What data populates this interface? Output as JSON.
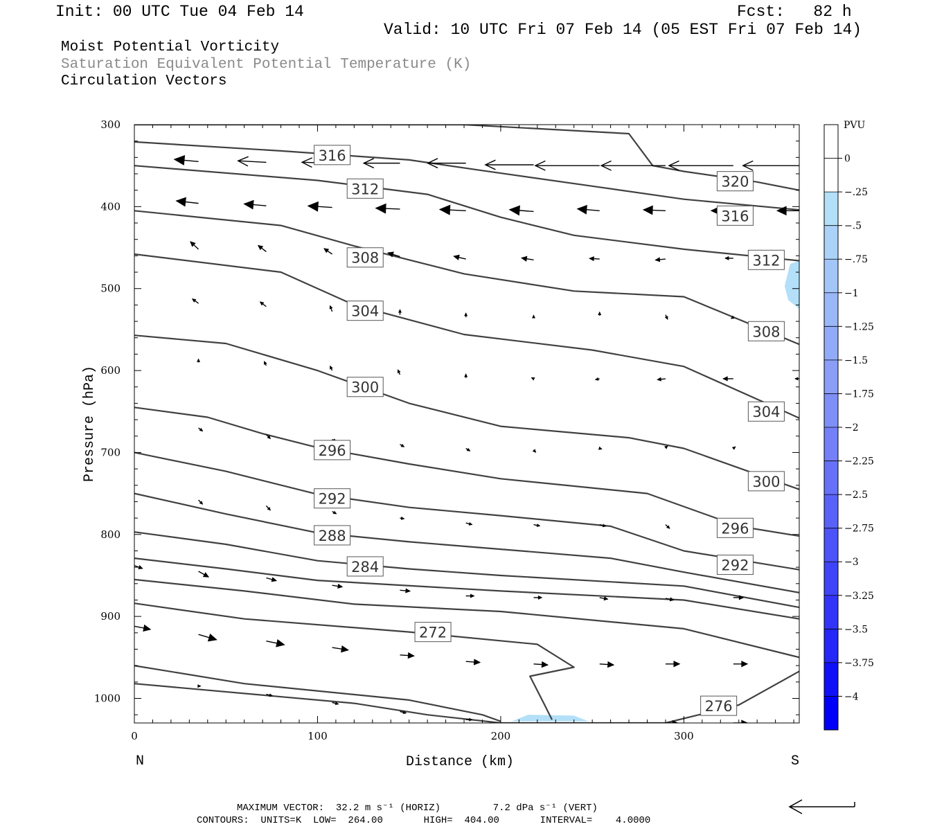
{
  "header": {
    "init": "Init: 00 UTC Tue 04 Feb 14",
    "fcst": "Fcst:   82 h",
    "valid": "Valid: 10 UTC Fri 07 Feb 14 (05 EST Fri 07 Feb 14)",
    "line1": "Moist Potential Vorticity",
    "line2": "Saturation Equivalent Potential Temperature (K)",
    "line3": "Circulation Vectors"
  },
  "footer": {
    "max_vector": "MAXIMUM VECTOR:  32.2 m s⁻¹ (HORIZ)         7.2 dPa s⁻¹ (VERT)",
    "contours": "CONTOURS:  UNITS=K  LOW=  264.00       HIGH=  404.00       INTERVAL=    4.0000"
  },
  "colors": {
    "contour": "#404040",
    "shade_light": "#b3e0f8",
    "vector": "#000000"
  },
  "chart_data": {
    "type": "contour-cross-section",
    "xlabel": "Distance (km)",
    "ylabel": "Pressure (hPa)",
    "xlim": [
      0,
      363
    ],
    "ylim": [
      1030,
      300
    ],
    "x_ticks": [
      0,
      100,
      200,
      300
    ],
    "y_ticks": [
      300,
      400,
      500,
      600,
      700,
      800,
      900,
      1000
    ],
    "left_end_label": "N",
    "right_end_label": "S",
    "colorbar": {
      "title": "PVU",
      "labels": [
        "0",
        "-.25",
        "-.5",
        "-.75",
        "-1",
        "-1.25",
        "-1.5",
        "-1.75",
        "-2",
        "-2.25",
        "-2.5",
        "-2.75",
        "-3",
        "-3.25",
        "-3.5",
        "-3.75",
        "-4"
      ],
      "colors": [
        "#ffffff",
        "#ffffff",
        "#b3e0f8",
        "#abd3f8",
        "#a3c6f8",
        "#9ab8f8",
        "#92abf8",
        "#8a9ef8",
        "#7f8ff8",
        "#7380f8",
        "#6671f8",
        "#5962f8",
        "#4c53f8",
        "#3f44f8",
        "#3235f8",
        "#2526f8",
        "#1010f8",
        "#0000f8"
      ]
    },
    "contours": [
      {
        "value": 320,
        "label": "320",
        "label_at": [
          328,
          369
        ],
        "points": [
          [
            0,
            300
          ],
          [
            180,
            300
          ],
          [
            270,
            311
          ],
          [
            283,
            350
          ],
          [
            300,
            357
          ],
          [
            340,
            370
          ],
          [
            363,
            380
          ]
        ]
      },
      {
        "value": 316,
        "label": "316",
        "label_at": [
          108,
          337
        ],
        "label2_at": [
          328,
          411
        ],
        "points": [
          [
            0,
            321
          ],
          [
            80,
            332
          ],
          [
            150,
            343
          ],
          [
            190,
            356
          ],
          [
            250,
            375
          ],
          [
            300,
            391
          ],
          [
            363,
            404
          ]
        ]
      },
      {
        "value": 312,
        "label": "312",
        "label_at": [
          126,
          378
        ],
        "label2_at": [
          345,
          465
        ],
        "points": [
          [
            0,
            350
          ],
          [
            100,
            368
          ],
          [
            160,
            385
          ],
          [
            200,
            413
          ],
          [
            240,
            435
          ],
          [
            300,
            452
          ],
          [
            363,
            466
          ]
        ]
      },
      {
        "value": 308,
        "label": "308",
        "label_at": [
          126,
          462
        ],
        "label2_at": [
          345,
          552
        ],
        "points": [
          [
            0,
            405
          ],
          [
            80,
            423
          ],
          [
            120,
            448
          ],
          [
            180,
            482
          ],
          [
            240,
            503
          ],
          [
            300,
            510
          ],
          [
            363,
            568
          ]
        ]
      },
      {
        "value": 304,
        "label": "304",
        "label_at": [
          126,
          527
        ],
        "label2_at": [
          345,
          650
        ],
        "points": [
          [
            0,
            458
          ],
          [
            80,
            480
          ],
          [
            120,
            520
          ],
          [
            180,
            556
          ],
          [
            250,
            575
          ],
          [
            300,
            595
          ],
          [
            363,
            658
          ]
        ]
      },
      {
        "value": 300,
        "label": "300",
        "label_at": [
          126,
          620
        ],
        "label2_at": [
          345,
          735
        ],
        "points": [
          [
            0,
            557
          ],
          [
            50,
            567
          ],
          [
            100,
            600
          ],
          [
            150,
            640
          ],
          [
            200,
            668
          ],
          [
            270,
            682
          ],
          [
            300,
            695
          ],
          [
            363,
            745
          ]
        ]
      },
      {
        "value": 296,
        "label": "296",
        "label_at": [
          108,
          697
        ],
        "label2_at": [
          328,
          792
        ],
        "points": [
          [
            0,
            645
          ],
          [
            40,
            657
          ],
          [
            70,
            677
          ],
          [
            100,
            694
          ],
          [
            150,
            714
          ],
          [
            200,
            732
          ],
          [
            280,
            750
          ],
          [
            330,
            790
          ],
          [
            363,
            802
          ]
        ]
      },
      {
        "value": 292,
        "label": "292",
        "label_at": [
          108,
          756
        ],
        "label2_at": [
          328,
          837
        ],
        "points": [
          [
            0,
            700
          ],
          [
            50,
            723
          ],
          [
            100,
            751
          ],
          [
            150,
            767
          ],
          [
            200,
            777
          ],
          [
            260,
            790
          ],
          [
            300,
            820
          ],
          [
            363,
            843
          ]
        ]
      },
      {
        "value": 288,
        "label": "288",
        "label_at": [
          108,
          801
        ],
        "points": [
          [
            0,
            750
          ],
          [
            50,
            775
          ],
          [
            100,
            798
          ],
          [
            150,
            809
          ],
          [
            200,
            818
          ],
          [
            260,
            829
          ],
          [
            300,
            846
          ],
          [
            363,
            871
          ]
        ]
      },
      {
        "value": 284,
        "label": "284",
        "label_at": [
          126,
          839
        ],
        "points": [
          [
            0,
            797
          ],
          [
            50,
            812
          ],
          [
            100,
            832
          ],
          [
            150,
            842
          ],
          [
            200,
            850
          ],
          [
            300,
            863
          ],
          [
            363,
            889
          ]
        ]
      },
      {
        "value": 280,
        "label": "",
        "points": [
          [
            0,
            829
          ],
          [
            50,
            842
          ],
          [
            100,
            856
          ],
          [
            200,
            869
          ],
          [
            300,
            880
          ],
          [
            363,
            903
          ]
        ]
      },
      {
        "value": 276,
        "label": "276",
        "label_at": [
          319,
          1009
        ],
        "points": [
          [
            0,
            855
          ],
          [
            60,
            869
          ],
          [
            120,
            885
          ],
          [
            200,
            894
          ],
          [
            300,
            915
          ],
          [
            363,
            950
          ]
        ]
      },
      {
        "value": 272,
        "label": "272",
        "label_at": [
          163,
          919
        ],
        "points": [
          [
            0,
            884
          ],
          [
            60,
            903
          ],
          [
            150,
            919
          ],
          [
            220,
            934
          ],
          [
            240,
            962
          ],
          [
            216,
            973
          ],
          [
            224,
            1008
          ],
          [
            228,
            1026
          ]
        ]
      },
      {
        "value": 268,
        "label": "",
        "points": [
          [
            0,
            960
          ],
          [
            60,
            982
          ],
          [
            150,
            1002
          ],
          [
            190,
            1020
          ],
          [
            200,
            1028
          ]
        ]
      },
      {
        "value": 264,
        "label": "",
        "points": [
          [
            0,
            982
          ],
          [
            120,
            1006
          ],
          [
            160,
            1020
          ],
          [
            200,
            1030
          ],
          [
            290,
            1030
          ],
          [
            330,
            1008
          ],
          [
            363,
            967
          ]
        ]
      }
    ],
    "shaded_regions": [
      {
        "level": "-.25",
        "points": [
          [
            206,
            1028
          ],
          [
            215,
            1020
          ],
          [
            240,
            1021
          ],
          [
            248,
            1028
          ]
        ]
      },
      {
        "level": "-.25",
        "points": [
          [
            363,
            466
          ],
          [
            358,
            470
          ],
          [
            355,
            497
          ],
          [
            357,
            514
          ],
          [
            363,
            525
          ]
        ]
      }
    ],
    "vectors_description": "circulation vectors; easterly flow (leftward) aloft above 400 hPa, weak flow mid-levels, westerly (rightward) flow below 800 hPa",
    "vectors": [
      {
        "x": 35,
        "p": 345,
        "u": -12,
        "w": 0.7
      },
      {
        "x": 72,
        "p": 346,
        "u": -14,
        "w": 0.5
      },
      {
        "x": 108,
        "p": 347,
        "u": -15,
        "w": 0.3
      },
      {
        "x": 145,
        "p": 347,
        "u": -18,
        "w": 0
      },
      {
        "x": 181,
        "p": 347,
        "u": -19,
        "w": 0
      },
      {
        "x": 218,
        "p": 349,
        "u": -24,
        "w": 0
      },
      {
        "x": 254,
        "p": 350,
        "u": -32,
        "w": 0
      },
      {
        "x": 290,
        "p": 350,
        "u": -32,
        "w": 0
      },
      {
        "x": 327,
        "p": 350,
        "u": -32,
        "w": 0
      },
      {
        "x": 363,
        "p": 350,
        "u": -28,
        "w": 0
      },
      {
        "x": 35,
        "p": 396,
        "u": -11,
        "w": 0.8
      },
      {
        "x": 72,
        "p": 399,
        "u": -11,
        "w": 0.6
      },
      {
        "x": 108,
        "p": 401,
        "u": -12,
        "w": 0.5
      },
      {
        "x": 145,
        "p": 403,
        "u": -12,
        "w": 0.3
      },
      {
        "x": 181,
        "p": 405,
        "u": -13,
        "w": 0.4
      },
      {
        "x": 218,
        "p": 406,
        "u": -12,
        "w": 0.6
      },
      {
        "x": 254,
        "p": 405,
        "u": -11,
        "w": 0.6
      },
      {
        "x": 290,
        "p": 405,
        "u": -11,
        "w": 0.3
      },
      {
        "x": 327,
        "p": 405,
        "u": -11,
        "w": 0
      },
      {
        "x": 363,
        "p": 405,
        "u": -11,
        "w": 0
      },
      {
        "x": 35,
        "p": 452,
        "u": -4,
        "w": 2.4
      },
      {
        "x": 72,
        "p": 455,
        "u": -4,
        "w": 2.0
      },
      {
        "x": 108,
        "p": 458,
        "u": -4,
        "w": 1.8
      },
      {
        "x": 145,
        "p": 461,
        "u": -6,
        "w": 1.2
      },
      {
        "x": 181,
        "p": 464,
        "u": -6,
        "w": 0.9
      },
      {
        "x": 218,
        "p": 465,
        "u": -6,
        "w": 0.6
      },
      {
        "x": 254,
        "p": 464,
        "u": -5,
        "w": 0.2
      },
      {
        "x": 290,
        "p": 464,
        "u": -5,
        "w": -0.3
      },
      {
        "x": 327,
        "p": 463,
        "u": -4,
        "w": 0
      },
      {
        "x": 35,
        "p": 518,
        "u": -3,
        "w": 1.4
      },
      {
        "x": 72,
        "p": 522,
        "u": -3,
        "w": 1.5
      },
      {
        "x": 108,
        "p": 528,
        "u": -1,
        "w": 1.8
      },
      {
        "x": 145,
        "p": 532,
        "u": 0,
        "w": 1.6
      },
      {
        "x": 181,
        "p": 535,
        "u": 0,
        "w": 1.3
      },
      {
        "x": 218,
        "p": 535,
        "u": 0,
        "w": 0.6
      },
      {
        "x": 254,
        "p": 533,
        "u": 0,
        "w": 1.1
      },
      {
        "x": 290,
        "p": 532,
        "u": 1,
        "w": -1.4
      },
      {
        "x": 327,
        "p": 535,
        "u": -1,
        "w": -0.4
      },
      {
        "x": 35,
        "p": 590,
        "u": 0,
        "w": 1.0
      },
      {
        "x": 72,
        "p": 594,
        "u": -1,
        "w": 1.3
      },
      {
        "x": 108,
        "p": 600,
        "u": -1,
        "w": 1.4
      },
      {
        "x": 145,
        "p": 605,
        "u": -1,
        "w": 1.5
      },
      {
        "x": 181,
        "p": 609,
        "u": 0,
        "w": 1.2
      },
      {
        "x": 218,
        "p": 610,
        "u": -1,
        "w": 0.3
      },
      {
        "x": 254,
        "p": 610,
        "u": -2,
        "w": -0.3
      },
      {
        "x": 290,
        "p": 610,
        "u": -4,
        "w": -0.3
      },
      {
        "x": 327,
        "p": 610,
        "u": -5,
        "w": 0
      },
      {
        "x": 363,
        "p": 610,
        "u": -2,
        "w": 0
      },
      {
        "x": 35,
        "p": 670,
        "u": 2,
        "w": -1.0
      },
      {
        "x": 72,
        "p": 678,
        "u": 2,
        "w": -1.3
      },
      {
        "x": 108,
        "p": 684,
        "u": 2,
        "w": -0.6
      },
      {
        "x": 145,
        "p": 690,
        "u": 2,
        "w": -0.8
      },
      {
        "x": 181,
        "p": 695,
        "u": 2,
        "w": -0.8
      },
      {
        "x": 218,
        "p": 697,
        "u": 1,
        "w": -0.7
      },
      {
        "x": 254,
        "p": 695,
        "u": 1,
        "w": -0.2
      },
      {
        "x": 290,
        "p": 694,
        "u": 1,
        "w": 0.5
      },
      {
        "x": 327,
        "p": 695,
        "u": 1,
        "w": 0.5
      },
      {
        "x": 35,
        "p": 758,
        "u": 2,
        "w": -1.3
      },
      {
        "x": 72,
        "p": 765,
        "u": 2,
        "w": -1.4
      },
      {
        "x": 108,
        "p": 772,
        "u": 2,
        "w": -0.7
      },
      {
        "x": 145,
        "p": 780,
        "u": 2,
        "w": -0.2
      },
      {
        "x": 181,
        "p": 786,
        "u": 3,
        "w": -0.5
      },
      {
        "x": 218,
        "p": 788,
        "u": 3,
        "w": -0.4
      },
      {
        "x": 254,
        "p": 788,
        "u": 3,
        "w": -0.5
      },
      {
        "x": 290,
        "p": 788,
        "u": 2,
        "w": -1.2
      },
      {
        "x": 327,
        "p": 788,
        "u": 3,
        "w": -1.2
      },
      {
        "x": 0,
        "p": 838,
        "u": 4,
        "w": -0.9
      },
      {
        "x": 35,
        "p": 845,
        "u": 5,
        "w": -1.8
      },
      {
        "x": 72,
        "p": 853,
        "u": 5,
        "w": -0.9
      },
      {
        "x": 108,
        "p": 862,
        "u": 5,
        "w": -0.5
      },
      {
        "x": 145,
        "p": 868,
        "u": 5,
        "w": -0.3
      },
      {
        "x": 181,
        "p": 875,
        "u": 4,
        "w": 0
      },
      {
        "x": 218,
        "p": 877,
        "u": 4,
        "w": 0
      },
      {
        "x": 254,
        "p": 877,
        "u": 4,
        "w": -0.5
      },
      {
        "x": 290,
        "p": 878,
        "u": 4,
        "w": -0.5
      },
      {
        "x": 327,
        "p": 877,
        "u": 5,
        "w": 0
      },
      {
        "x": 0,
        "p": 912,
        "u": 8,
        "w": -1.0
      },
      {
        "x": 35,
        "p": 922,
        "u": 9,
        "w": -1.7
      },
      {
        "x": 72,
        "p": 930,
        "u": 9,
        "w": -1.2
      },
      {
        "x": 108,
        "p": 938,
        "u": 8,
        "w": -0.8
      },
      {
        "x": 145,
        "p": 947,
        "u": 7,
        "w": -0.3
      },
      {
        "x": 181,
        "p": 955,
        "u": 7,
        "w": -0.3
      },
      {
        "x": 218,
        "p": 958,
        "u": 7,
        "w": -0.3
      },
      {
        "x": 254,
        "p": 958,
        "u": 7,
        "w": -0.3
      },
      {
        "x": 290,
        "p": 958,
        "u": 7,
        "w": 0
      },
      {
        "x": 327,
        "p": 958,
        "u": 7,
        "w": 0
      },
      {
        "x": 35,
        "p": 985,
        "u": 1,
        "w": 0
      },
      {
        "x": 72,
        "p": 995,
        "u": 3,
        "w": -0.5
      },
      {
        "x": 108,
        "p": 1005,
        "u": 3,
        "w": -0.5
      },
      {
        "x": 145,
        "p": 1016,
        "u": 3,
        "w": -0.5
      },
      {
        "x": 181,
        "p": 1026,
        "u": 3,
        "w": 0
      },
      {
        "x": 290,
        "p": 1030,
        "u": 6,
        "w": 0
      },
      {
        "x": 327,
        "p": 1030,
        "u": 7,
        "w": 0
      }
    ]
  }
}
